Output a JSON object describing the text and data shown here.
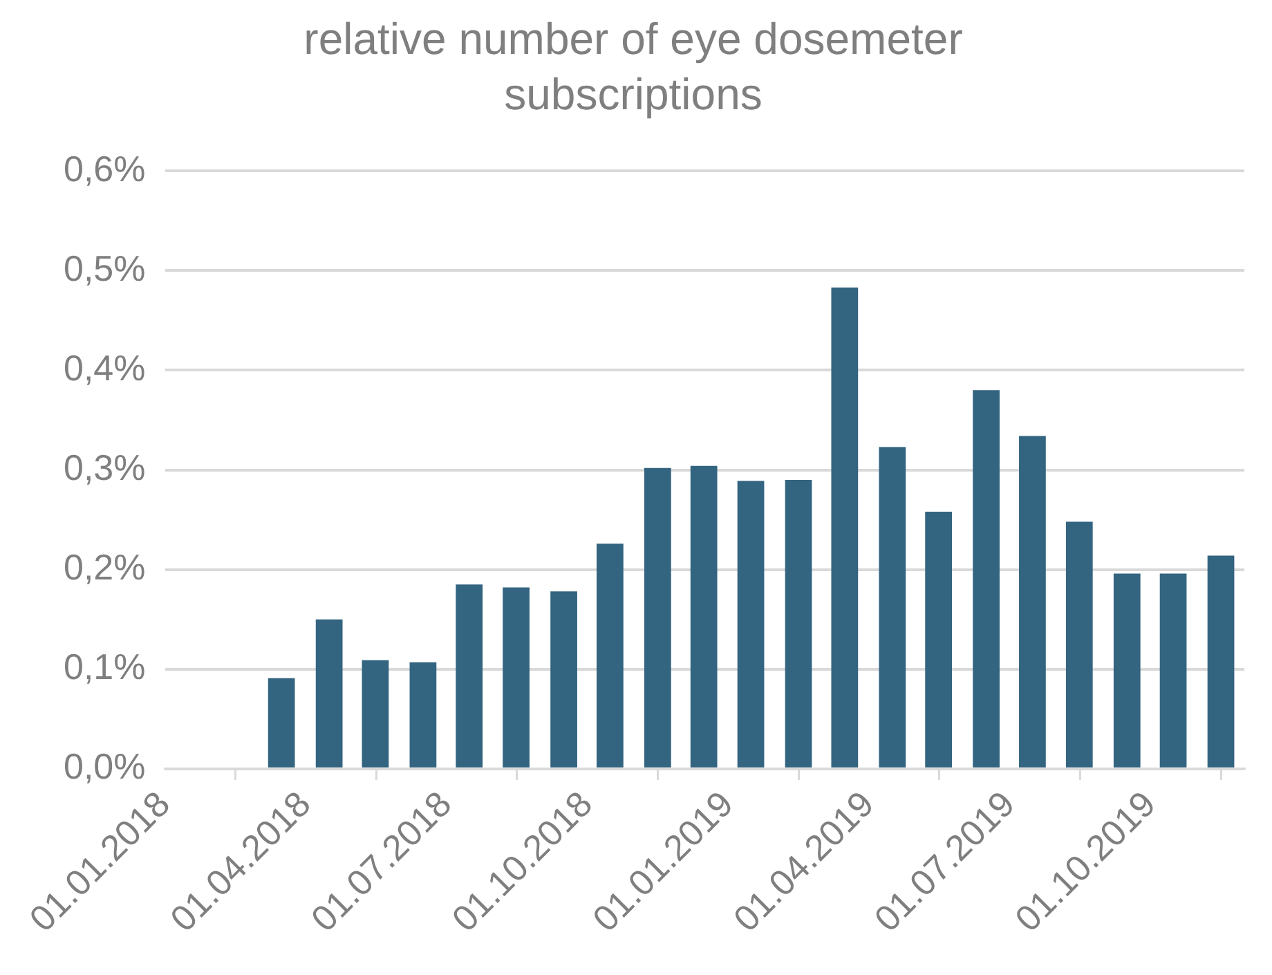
{
  "chart_data": {
    "type": "bar",
    "title": "relative number of eye dosemeter subscriptions",
    "x": [
      "2018-03-16",
      "2018-04-16",
      "2018-05-16",
      "2018-06-16",
      "2018-07-16",
      "2018-08-16",
      "2018-09-16",
      "2018-10-16",
      "2018-11-16",
      "2018-12-16",
      "2019-01-16",
      "2019-02-15",
      "2019-03-16",
      "2019-04-16",
      "2019-05-16",
      "2019-06-16",
      "2019-07-16",
      "2019-08-16",
      "2019-09-16",
      "2019-10-16",
      "2019-11-16"
    ],
    "values": [
      0.091,
      0.15,
      0.109,
      0.107,
      0.185,
      0.182,
      0.178,
      0.226,
      0.302,
      0.304,
      0.289,
      0.29,
      0.483,
      0.323,
      0.258,
      0.38,
      0.334,
      0.248,
      0.196,
      0.196,
      0.214
    ],
    "color": "#336480",
    "xlim": [
      "2018-01-01",
      "2019-12-01"
    ],
    "xticks": [
      {
        "value": "2018-01-01",
        "label": "01.01.2018"
      },
      {
        "value": "2018-04-01",
        "label": "01.04.2018"
      },
      {
        "value": "2018-07-01",
        "label": "01.07.2018"
      },
      {
        "value": "2018-10-01",
        "label": "01.10.2018"
      },
      {
        "value": "2019-01-01",
        "label": "01.01.2019"
      },
      {
        "value": "2019-04-01",
        "label": "01.04.2019"
      },
      {
        "value": "2019-07-01",
        "label": "01.07.2019"
      },
      {
        "value": "2019-10-01",
        "label": "01.10.2019"
      }
    ],
    "ylim": [
      0,
      0.6
    ],
    "yticks": [
      {
        "value": 0,
        "label": "0,0%"
      },
      {
        "value": 0.1,
        "label": "0,1%"
      },
      {
        "value": 0.2,
        "label": "0,2%"
      },
      {
        "value": 0.3,
        "label": "0,3%"
      },
      {
        "value": 0.4,
        "label": "0,4%"
      },
      {
        "value": 0.5,
        "label": "0,5%"
      },
      {
        "value": 0.6,
        "label": "0,6%"
      }
    ],
    "grid": "y",
    "legend": false
  }
}
